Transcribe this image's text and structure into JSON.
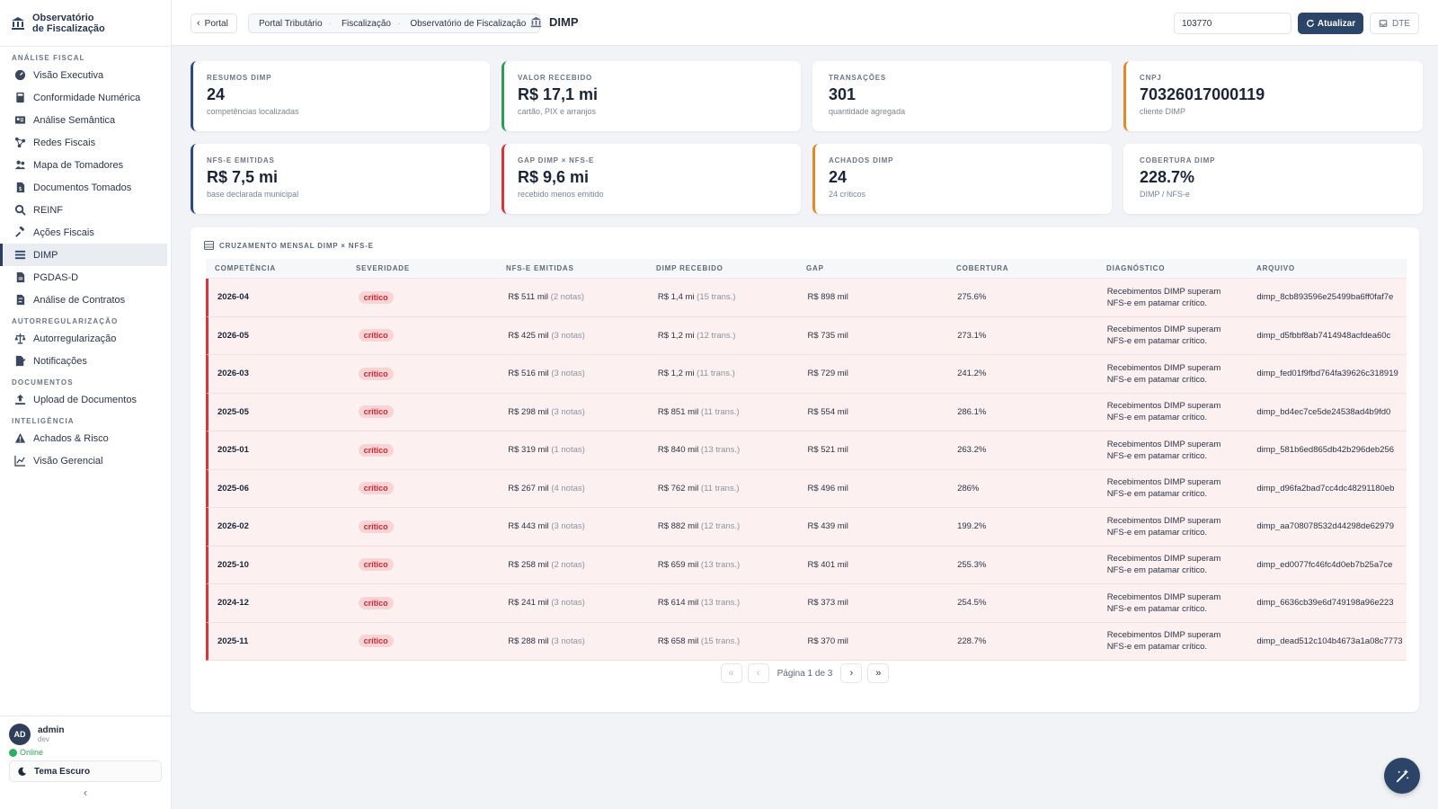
{
  "brand": {
    "line1": "Observatório",
    "line2": "de Fiscalização",
    "icon": "bank-icon"
  },
  "sidebar": {
    "sections": [
      {
        "title": "Análise Fiscal",
        "items": [
          {
            "label": "Visão Executiva",
            "icon": "gauge-icon"
          },
          {
            "label": "Conformidade Numérica",
            "icon": "calculator-icon"
          },
          {
            "label": "Análise Semântica",
            "icon": "id-card-icon"
          },
          {
            "label": "Redes Fiscais",
            "icon": "network-icon"
          },
          {
            "label": "Mapa de Tomadores",
            "icon": "users-icon"
          },
          {
            "label": "Documentos Tomados",
            "icon": "file-dollar-icon"
          },
          {
            "label": "REINF",
            "icon": "search-icon"
          },
          {
            "label": "Ações Fiscais",
            "icon": "gavel-icon"
          },
          {
            "label": "DIMP",
            "icon": "list-icon",
            "active": true
          },
          {
            "label": "PGDAS-D",
            "icon": "file-icon"
          },
          {
            "label": "Análise de Contratos",
            "icon": "file-contract-icon"
          }
        ]
      },
      {
        "title": "Autorregularização",
        "items": [
          {
            "label": "Autorregularização",
            "icon": "scale-icon"
          },
          {
            "label": "Notificações",
            "icon": "file-signature-icon"
          }
        ]
      },
      {
        "title": "Documentos",
        "items": [
          {
            "label": "Upload de Documentos",
            "icon": "upload-icon"
          }
        ]
      },
      {
        "title": "Inteligência",
        "items": [
          {
            "label": "Achados & Risco",
            "icon": "warning-icon"
          },
          {
            "label": "Visão Gerencial",
            "icon": "chart-line-icon"
          }
        ]
      }
    ]
  },
  "user": {
    "initials": "AD",
    "name": "admin",
    "role": "dev",
    "status": "Online",
    "theme_label": "Tema Escuro"
  },
  "topbar": {
    "back_label": "Portal",
    "breadcrumbs": [
      "Portal Tributário",
      "Fiscalização",
      "Observatório de Fiscalização"
    ],
    "page_title": "DIMP",
    "cnpj_value": "103770",
    "refresh_label": "Atualizar",
    "dte_label": "DTE"
  },
  "kpis": [
    {
      "label": "Resumos DIMP",
      "value": "24",
      "sub": "competências localizadas",
      "color": "#2c4a8a"
    },
    {
      "label": "Valor Recebido",
      "value": "R$ 17,1 mi",
      "sub": "cartão, PIX e arranjos",
      "color": "#2e9a57"
    },
    {
      "label": "Transações",
      "value": "301",
      "sub": "quantidade agregada",
      "color": "#ffffff"
    },
    {
      "label": "CNPJ",
      "value": "70326017000119",
      "sub": "cliente DIMP",
      "color": "#e0892b"
    },
    {
      "label": "NFS-e Emitidas",
      "value": "R$ 7,5 mi",
      "sub": "base declarada municipal",
      "color": "#2c4a8a"
    },
    {
      "label": "Gap DIMP × NFS-e",
      "value": "R$ 9,6 mi",
      "sub": "recebido menos emitido",
      "color": "#d8343c"
    },
    {
      "label": "Achados DIMP",
      "value": "24",
      "sub": "24 críticos",
      "color": "#e0892b"
    },
    {
      "label": "Cobertura DIMP",
      "value": "228.7%",
      "sub": "DIMP / NFS-e",
      "color": "#ffffff"
    }
  ],
  "table": {
    "title": "Cruzamento mensal DIMP × NFS-e",
    "columns": [
      "Competência",
      "Severidade",
      "NFS-e Emitidas",
      "DIMP Recebido",
      "Gap",
      "Cobertura",
      "Diagnóstico",
      "Arquivo"
    ],
    "rows": [
      {
        "comp": "2026-04",
        "sev": "crítico",
        "nfse": "R$ 511 mil",
        "nfse_q": "(2 notas)",
        "dimp": "R$ 1,4 mi",
        "dimp_q": "(15 trans.)",
        "gap": "R$ 898 mil",
        "cob": "275.6%",
        "diag": "Recebimentos DIMP superam NFS-e em patamar crítico.",
        "arq": "dimp_8cb893596e25499ba6ff0faf7e"
      },
      {
        "comp": "2026-05",
        "sev": "crítico",
        "nfse": "R$ 425 mil",
        "nfse_q": "(3 notas)",
        "dimp": "R$ 1,2 mi",
        "dimp_q": "(12 trans.)",
        "gap": "R$ 735 mil",
        "cob": "273.1%",
        "diag": "Recebimentos DIMP superam NFS-e em patamar crítico.",
        "arq": "dimp_d5fbbf8ab7414948acfdea60c"
      },
      {
        "comp": "2026-03",
        "sev": "crítico",
        "nfse": "R$ 516 mil",
        "nfse_q": "(3 notas)",
        "dimp": "R$ 1,2 mi",
        "dimp_q": "(11 trans.)",
        "gap": "R$ 729 mil",
        "cob": "241.2%",
        "diag": "Recebimentos DIMP superam NFS-e em patamar crítico.",
        "arq": "dimp_fed01f9fbd764fa39626c318919"
      },
      {
        "comp": "2025-05",
        "sev": "crítico",
        "nfse": "R$ 298 mil",
        "nfse_q": "(3 notas)",
        "dimp": "R$ 851 mil",
        "dimp_q": "(11 trans.)",
        "gap": "R$ 554 mil",
        "cob": "286.1%",
        "diag": "Recebimentos DIMP superam NFS-e em patamar crítico.",
        "arq": "dimp_bd4ec7ce5de24538ad4b9fd0"
      },
      {
        "comp": "2025-01",
        "sev": "crítico",
        "nfse": "R$ 319 mil",
        "nfse_q": "(1 notas)",
        "dimp": "R$ 840 mil",
        "dimp_q": "(13 trans.)",
        "gap": "R$ 521 mil",
        "cob": "263.2%",
        "diag": "Recebimentos DIMP superam NFS-e em patamar crítico.",
        "arq": "dimp_581b6ed865db42b296deb256"
      },
      {
        "comp": "2025-06",
        "sev": "crítico",
        "nfse": "R$ 267 mil",
        "nfse_q": "(4 notas)",
        "dimp": "R$ 762 mil",
        "dimp_q": "(11 trans.)",
        "gap": "R$ 496 mil",
        "cob": "286%",
        "diag": "Recebimentos DIMP superam NFS-e em patamar crítico.",
        "arq": "dimp_d96fa2bad7cc4dc48291180eb"
      },
      {
        "comp": "2026-02",
        "sev": "crítico",
        "nfse": "R$ 443 mil",
        "nfse_q": "(3 notas)",
        "dimp": "R$ 882 mil",
        "dimp_q": "(12 trans.)",
        "gap": "R$ 439 mil",
        "cob": "199.2%",
        "diag": "Recebimentos DIMP superam NFS-e em patamar crítico.",
        "arq": "dimp_aa708078532d44298de62979"
      },
      {
        "comp": "2025-10",
        "sev": "crítico",
        "nfse": "R$ 258 mil",
        "nfse_q": "(2 notas)",
        "dimp": "R$ 659 mil",
        "dimp_q": "(13 trans.)",
        "gap": "R$ 401 mil",
        "cob": "255.3%",
        "diag": "Recebimentos DIMP superam NFS-e em patamar crítico.",
        "arq": "dimp_ed0077fc46fc4d0eb7b25a7ce"
      },
      {
        "comp": "2024-12",
        "sev": "crítico",
        "nfse": "R$ 241 mil",
        "nfse_q": "(3 notas)",
        "dimp": "R$ 614 mil",
        "dimp_q": "(13 trans.)",
        "gap": "R$ 373 mil",
        "cob": "254.5%",
        "diag": "Recebimentos DIMP superam NFS-e em patamar crítico.",
        "arq": "dimp_6636cb39e6d749198a96e223"
      },
      {
        "comp": "2025-11",
        "sev": "crítico",
        "nfse": "R$ 288 mil",
        "nfse_q": "(3 notas)",
        "dimp": "R$ 658 mil",
        "dimp_q": "(15 trans.)",
        "gap": "R$ 370 mil",
        "cob": "228.7%",
        "diag": "Recebimentos DIMP superam NFS-e em patamar crítico.",
        "arq": "dimp_dead512c104b4673a1a08c7773"
      }
    ],
    "pagination": "Página 1 de 3"
  },
  "colors": {
    "primary": "#2c4468",
    "danger": "#d8343c",
    "row_bg": "#fdf0f0"
  }
}
